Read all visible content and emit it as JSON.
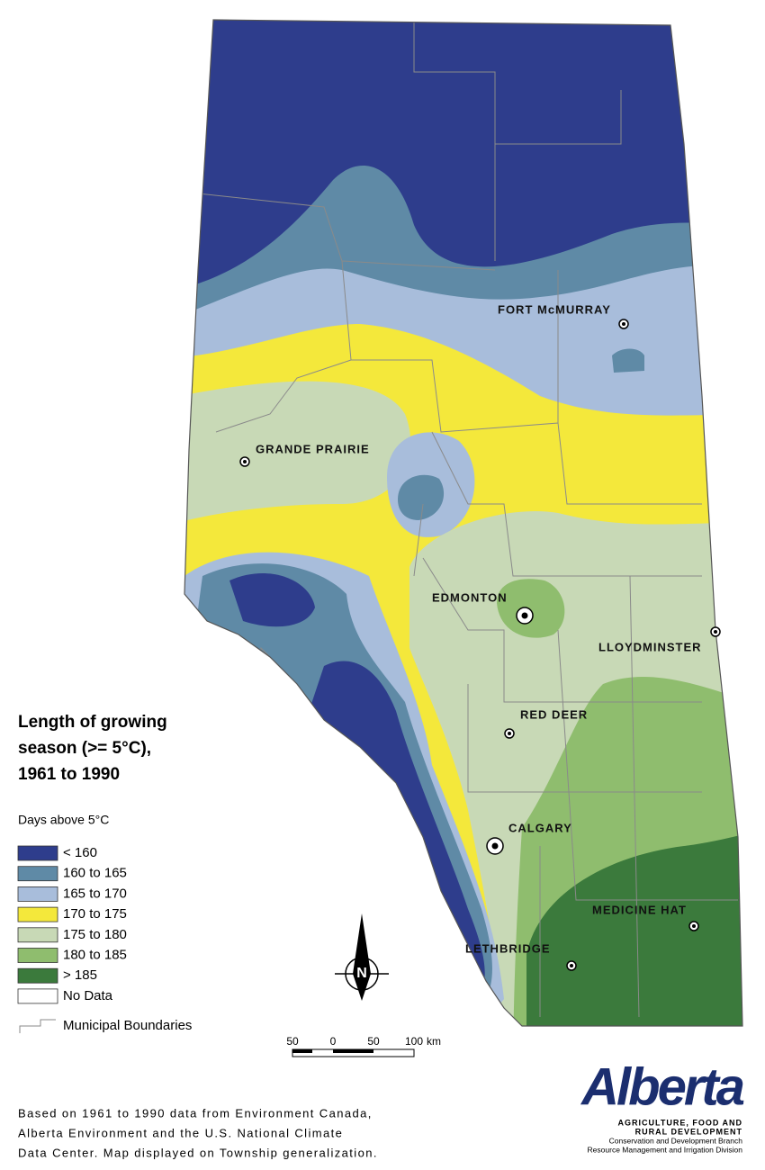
{
  "map": {
    "title": [
      "Length of growing",
      "season (>= 5°C),",
      "1961 to 1990"
    ],
    "legend": {
      "title": "Days above 5°C",
      "items": [
        {
          "label": "< 160",
          "color": "#2e3d8c"
        },
        {
          "label": "160 to 165",
          "color": "#5f8aa6"
        },
        {
          "label": "165 to 170",
          "color": "#a8bddb"
        },
        {
          "label": "170 to 175",
          "color": "#f4e83b"
        },
        {
          "label": "175 to 180",
          "color": "#c8d9b6"
        },
        {
          "label": "180 to 185",
          "color": "#8fbd6e"
        },
        {
          "label": "> 185",
          "color": "#3b7a3c"
        }
      ],
      "no_data": {
        "label": "No Data",
        "color": "#ffffff"
      },
      "boundaries": "Municipal Boundaries"
    },
    "cities": [
      "FORT McMURRAY",
      "GRANDE PRAIRIE",
      "EDMONTON",
      "LLOYDMINSTER",
      "RED DEER",
      "CALGARY",
      "MEDICINE HAT",
      "LETHBRIDGE"
    ],
    "scale": {
      "ticks": [
        "50",
        "0",
        "50",
        "100"
      ],
      "unit": "km"
    },
    "north": "N",
    "source": [
      "Based on 1961 to 1990 data from Environment Canada,",
      "Alberta Environment and the U.S. National Climate",
      "Data Center. Map displayed on Township generalization."
    ],
    "logo": {
      "name": "Alberta",
      "lines": [
        "AGRICULTURE, FOOD AND",
        "RURAL DEVELOPMENT",
        "Conservation and Development Branch",
        "Resource Management and Irrigation Division"
      ]
    }
  }
}
